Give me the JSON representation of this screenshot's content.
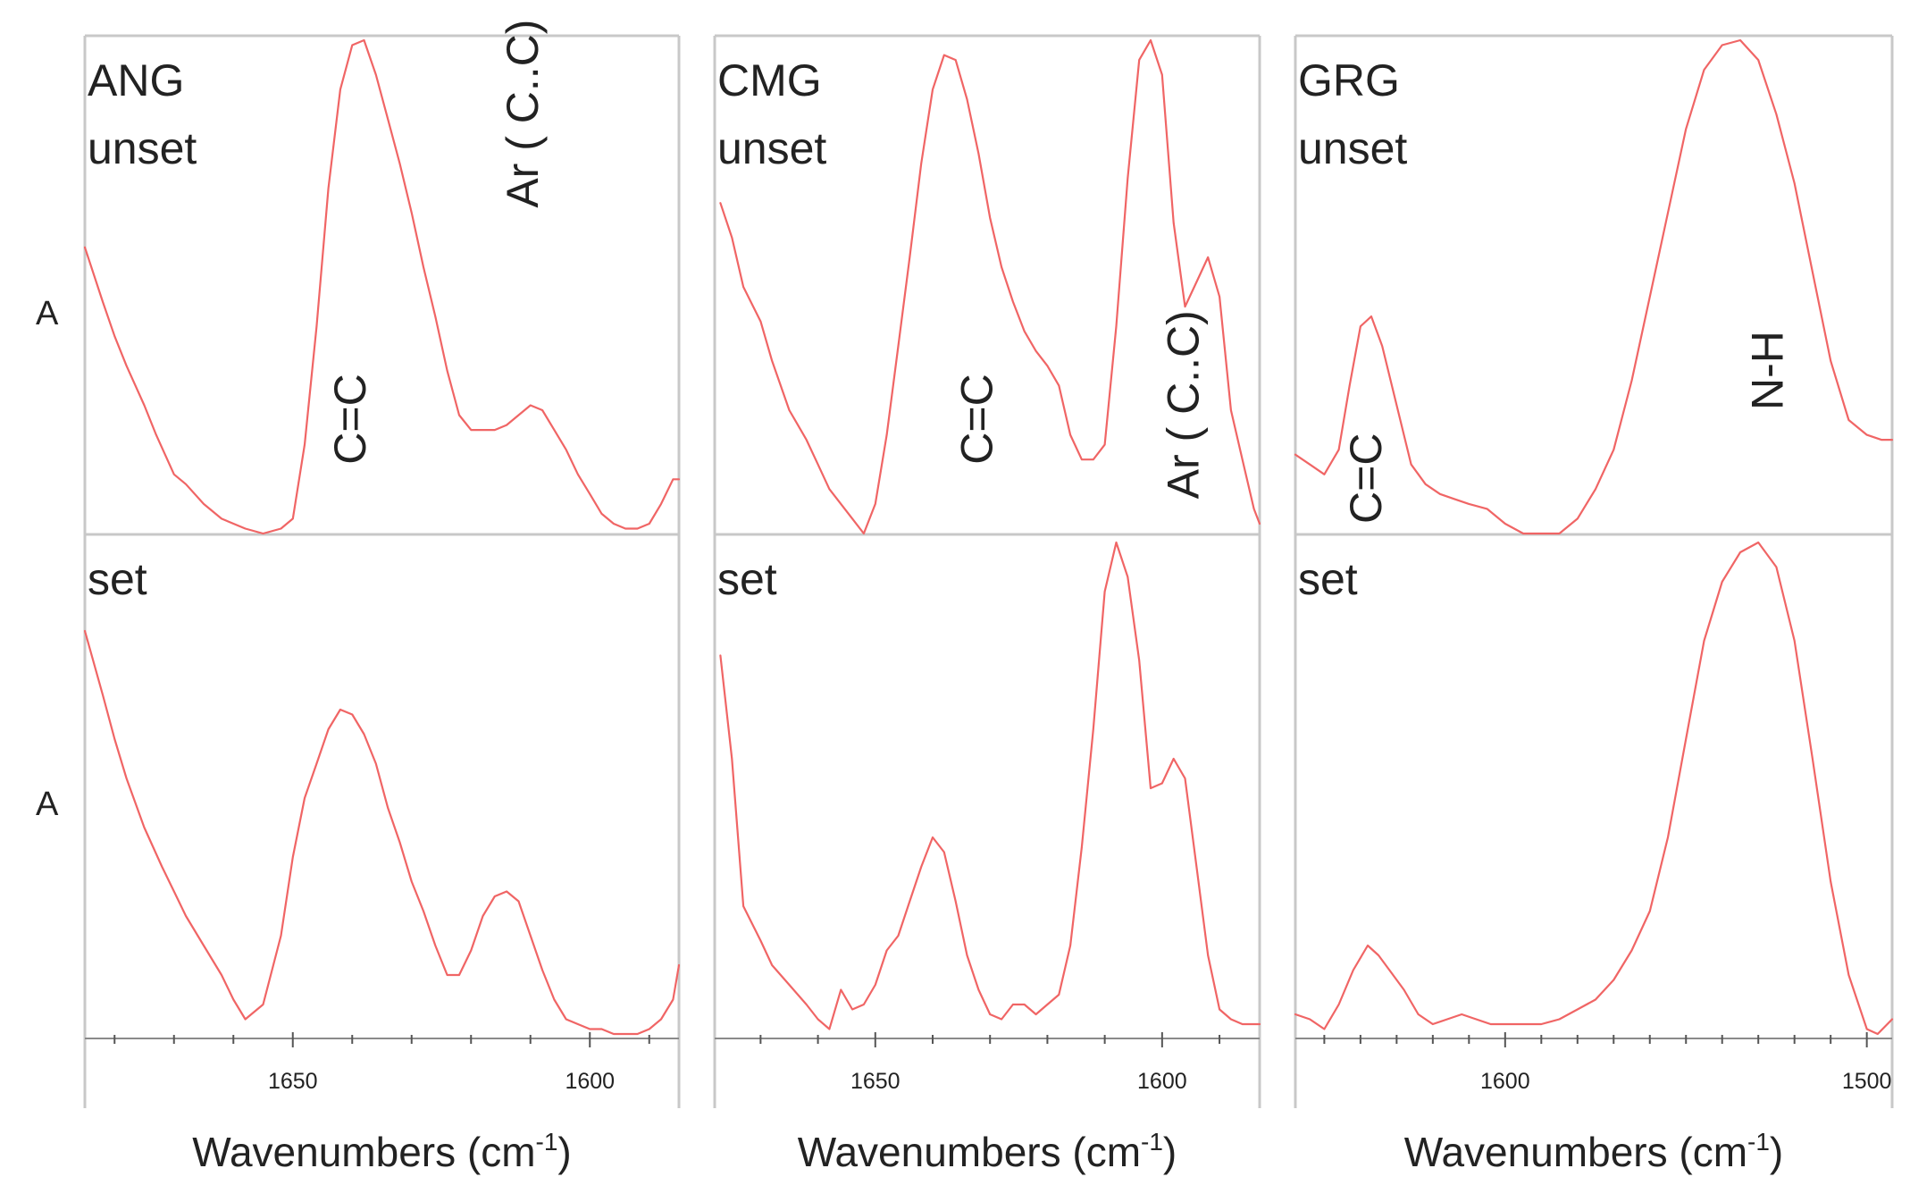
{
  "y_axis_label": "A",
  "chart_data": [
    {
      "type": "line",
      "name": "ANG",
      "xlabel": "Wavenumbers (cm",
      "xlabel_sup": "-1",
      "xlabel_close": ")",
      "x_reversed": true,
      "xlim": [
        1685,
        1585
      ],
      "major_ticks": [
        1650,
        1600
      ],
      "minor_step": 10,
      "annotations": [
        {
          "text": "C=C",
          "x": 1640,
          "level": 0.14,
          "rotate": -90
        },
        {
          "text": "Ar ( C..C)",
          "x": 1611,
          "level": 0.66,
          "rotate": -90
        }
      ],
      "rows": [
        {
          "label_lines": [
            "ANG",
            "unset"
          ],
          "x": [
            1685,
            1682,
            1680,
            1678,
            1675,
            1673,
            1670,
            1668,
            1665,
            1662,
            1658,
            1655,
            1652,
            1650,
            1648,
            1646,
            1644,
            1642,
            1640,
            1638,
            1636,
            1634,
            1632,
            1630,
            1628,
            1626,
            1624,
            1622,
            1620,
            1618,
            1616,
            1614,
            1612,
            1610,
            1608,
            1606,
            1604,
            1602,
            1600,
            1598,
            1596,
            1594,
            1592,
            1590,
            1588,
            1586,
            1585
          ],
          "y": [
            0.58,
            0.47,
            0.4,
            0.34,
            0.26,
            0.2,
            0.12,
            0.1,
            0.06,
            0.03,
            0.01,
            0.0,
            0.01,
            0.03,
            0.18,
            0.42,
            0.7,
            0.9,
            0.99,
            1.0,
            0.93,
            0.84,
            0.75,
            0.65,
            0.54,
            0.44,
            0.33,
            0.24,
            0.21,
            0.21,
            0.21,
            0.22,
            0.24,
            0.26,
            0.25,
            0.21,
            0.17,
            0.12,
            0.08,
            0.04,
            0.02,
            0.01,
            0.01,
            0.02,
            0.06,
            0.11,
            0.11
          ]
        },
        {
          "label_lines": [
            "set"
          ],
          "x": [
            1685,
            1682,
            1680,
            1678,
            1675,
            1672,
            1670,
            1668,
            1665,
            1662,
            1660,
            1658,
            1655,
            1652,
            1650,
            1648,
            1646,
            1644,
            1642,
            1640,
            1638,
            1636,
            1634,
            1632,
            1630,
            1628,
            1626,
            1624,
            1622,
            1620,
            1618,
            1616,
            1614,
            1612,
            1610,
            1608,
            1606,
            1604,
            1602,
            1600,
            1598,
            1596,
            1594,
            1592,
            1590,
            1588,
            1586,
            1585
          ],
          "y": [
            0.82,
            0.69,
            0.6,
            0.52,
            0.42,
            0.34,
            0.29,
            0.24,
            0.18,
            0.12,
            0.07,
            0.03,
            0.06,
            0.2,
            0.36,
            0.48,
            0.55,
            0.62,
            0.66,
            0.65,
            0.61,
            0.55,
            0.46,
            0.39,
            0.31,
            0.25,
            0.18,
            0.12,
            0.12,
            0.17,
            0.24,
            0.28,
            0.29,
            0.27,
            0.2,
            0.13,
            0.07,
            0.03,
            0.02,
            0.01,
            0.01,
            0.0,
            0.0,
            0.0,
            0.01,
            0.03,
            0.07,
            0.14
          ]
        }
      ]
    },
    {
      "type": "line",
      "name": "CMG",
      "xlabel": "Wavenumbers (cm",
      "xlabel_sup": "-1",
      "xlabel_close": ")",
      "x_reversed": true,
      "xlim": [
        1678,
        1583
      ],
      "major_ticks": [
        1650,
        1600
      ],
      "minor_step": 10,
      "annotations": [
        {
          "text": "C=C",
          "x": 1632,
          "level": 0.14,
          "rotate": -90
        },
        {
          "text": "Ar ( C..C)",
          "x": 1596,
          "level": 0.07,
          "rotate": -90
        }
      ],
      "rows": [
        {
          "label_lines": [
            "CMG",
            "unset"
          ],
          "x": [
            1677,
            1675,
            1673,
            1670,
            1668,
            1665,
            1662,
            1660,
            1658,
            1656,
            1654,
            1652,
            1650,
            1648,
            1646,
            1644,
            1642,
            1640,
            1638,
            1636,
            1634,
            1632,
            1630,
            1628,
            1626,
            1624,
            1622,
            1620,
            1618,
            1616,
            1614,
            1612,
            1610,
            1608,
            1606,
            1604,
            1602,
            1600,
            1598,
            1596,
            1594,
            1592,
            1590,
            1588,
            1586,
            1584,
            1583
          ],
          "y": [
            0.67,
            0.6,
            0.5,
            0.43,
            0.35,
            0.25,
            0.19,
            0.14,
            0.09,
            0.06,
            0.03,
            0.0,
            0.06,
            0.2,
            0.38,
            0.56,
            0.75,
            0.9,
            0.97,
            0.96,
            0.88,
            0.77,
            0.64,
            0.54,
            0.47,
            0.41,
            0.37,
            0.34,
            0.3,
            0.2,
            0.15,
            0.15,
            0.18,
            0.42,
            0.72,
            0.96,
            1.0,
            0.93,
            0.63,
            0.46,
            0.51,
            0.56,
            0.48,
            0.25,
            0.15,
            0.05,
            0.02
          ]
        },
        {
          "label_lines": [
            "set"
          ],
          "x": [
            1677,
            1675,
            1673,
            1670,
            1668,
            1665,
            1662,
            1660,
            1658,
            1656,
            1654,
            1652,
            1650,
            1648,
            1646,
            1644,
            1642,
            1640,
            1638,
            1636,
            1634,
            1632,
            1630,
            1628,
            1626,
            1624,
            1622,
            1620,
            1618,
            1616,
            1614,
            1612,
            1610,
            1608,
            1606,
            1604,
            1602,
            1600,
            1598,
            1596,
            1594,
            1592,
            1590,
            1588,
            1586,
            1584,
            1583
          ],
          "y": [
            0.77,
            0.56,
            0.26,
            0.19,
            0.14,
            0.1,
            0.06,
            0.03,
            0.01,
            0.09,
            0.05,
            0.06,
            0.1,
            0.17,
            0.2,
            0.27,
            0.34,
            0.4,
            0.37,
            0.27,
            0.16,
            0.09,
            0.04,
            0.03,
            0.06,
            0.06,
            0.04,
            0.06,
            0.08,
            0.18,
            0.38,
            0.62,
            0.9,
            1.0,
            0.93,
            0.76,
            0.5,
            0.51,
            0.56,
            0.52,
            0.34,
            0.16,
            0.05,
            0.03,
            0.02,
            0.02,
            0.02
          ]
        }
      ]
    },
    {
      "type": "line",
      "name": "GRG",
      "xlabel": "Wavenumbers (cm",
      "xlabel_sup": "-1",
      "xlabel_close": ")",
      "x_reversed": true,
      "xlim": [
        1658,
        1493
      ],
      "major_ticks": [
        1600,
        1500
      ],
      "minor_step": 10,
      "annotations": [
        {
          "text": "C=C",
          "x": 1638,
          "level": 0.02,
          "rotate": -90
        },
        {
          "text": "N-H",
          "x": 1527,
          "level": 0.25,
          "rotate": -90
        }
      ],
      "rows": [
        {
          "label_lines": [
            "GRG",
            "unset"
          ],
          "x": [
            1658,
            1654,
            1650,
            1646,
            1643,
            1640,
            1637,
            1634,
            1630,
            1626,
            1622,
            1618,
            1614,
            1610,
            1605,
            1600,
            1595,
            1590,
            1585,
            1580,
            1575,
            1570,
            1565,
            1560,
            1555,
            1550,
            1545,
            1540,
            1535,
            1530,
            1525,
            1520,
            1515,
            1510,
            1505,
            1500,
            1496,
            1493
          ],
          "y": [
            0.16,
            0.14,
            0.12,
            0.17,
            0.3,
            0.42,
            0.44,
            0.38,
            0.26,
            0.14,
            0.1,
            0.08,
            0.07,
            0.06,
            0.05,
            0.02,
            0.0,
            0.0,
            0.0,
            0.03,
            0.09,
            0.17,
            0.31,
            0.48,
            0.65,
            0.82,
            0.94,
            0.99,
            1.0,
            0.96,
            0.85,
            0.71,
            0.53,
            0.35,
            0.23,
            0.2,
            0.19,
            0.19
          ]
        },
        {
          "label_lines": [
            "set"
          ],
          "x": [
            1658,
            1654,
            1650,
            1646,
            1642,
            1638,
            1635,
            1632,
            1628,
            1624,
            1620,
            1616,
            1612,
            1608,
            1604,
            1600,
            1595,
            1590,
            1585,
            1580,
            1575,
            1570,
            1565,
            1560,
            1555,
            1550,
            1545,
            1540,
            1535,
            1530,
            1525,
            1520,
            1515,
            1510,
            1505,
            1500,
            1497,
            1493
          ],
          "y": [
            0.04,
            0.03,
            0.01,
            0.06,
            0.13,
            0.18,
            0.16,
            0.13,
            0.09,
            0.04,
            0.02,
            0.03,
            0.04,
            0.03,
            0.02,
            0.02,
            0.02,
            0.02,
            0.03,
            0.05,
            0.07,
            0.11,
            0.17,
            0.25,
            0.4,
            0.6,
            0.8,
            0.92,
            0.98,
            1.0,
            0.95,
            0.8,
            0.56,
            0.31,
            0.12,
            0.01,
            0.0,
            0.03
          ]
        }
      ]
    }
  ]
}
